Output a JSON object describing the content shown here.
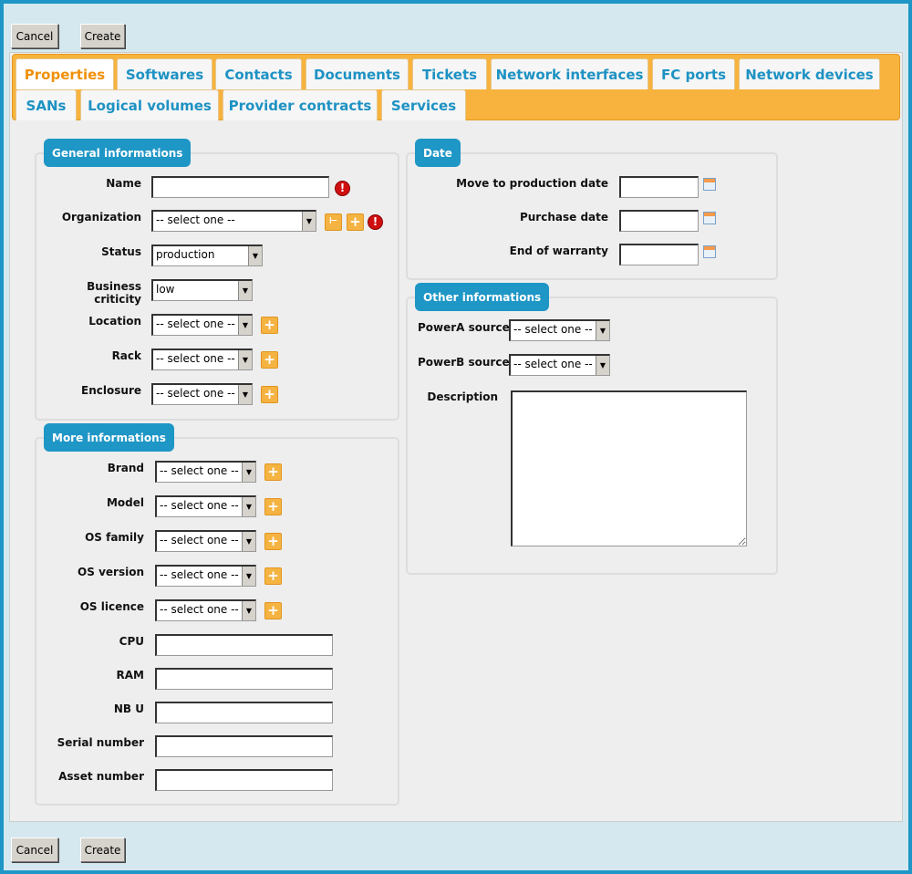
{
  "actions": {
    "cancel": "Cancel",
    "create": "Create"
  },
  "tabs": {
    "row1": [
      "Properties",
      "Softwares",
      "Contacts",
      "Documents",
      "Tickets",
      "Network interfaces",
      "FC ports",
      "Network devices"
    ],
    "row2": [
      "SANs",
      "Logical volumes",
      "Provider contracts",
      "Services"
    ],
    "active": "Properties"
  },
  "general": {
    "legend": "General informations",
    "name": "Name",
    "organization": "Organization",
    "organization_value": "-- select one --",
    "status": "Status",
    "status_value": "production",
    "criticity": "Business criticity",
    "criticity_value": "low",
    "location": "Location",
    "rack": "Rack",
    "enclosure": "Enclosure",
    "select_placeholder": "-- select one --"
  },
  "more": {
    "legend": "More informations",
    "brand": "Brand",
    "model": "Model",
    "os_family": "OS family",
    "os_version": "OS version",
    "os_licence": "OS licence",
    "cpu": "CPU",
    "ram": "RAM",
    "nb_u": "NB U",
    "serial": "Serial number",
    "asset": "Asset number",
    "select_placeholder": "-- select one --"
  },
  "date": {
    "legend": "Date",
    "move": "Move to production date",
    "purchase": "Purchase date",
    "warranty": "End of warranty"
  },
  "other": {
    "legend": "Other informations",
    "powera": "PowerA source",
    "powerb": "PowerB source",
    "description": "Description",
    "select_placeholder": "-- select one --"
  },
  "colors": {
    "accent": "#1e96c6",
    "tabbar": "#f7b33e",
    "active_tab": "#f0900a"
  }
}
